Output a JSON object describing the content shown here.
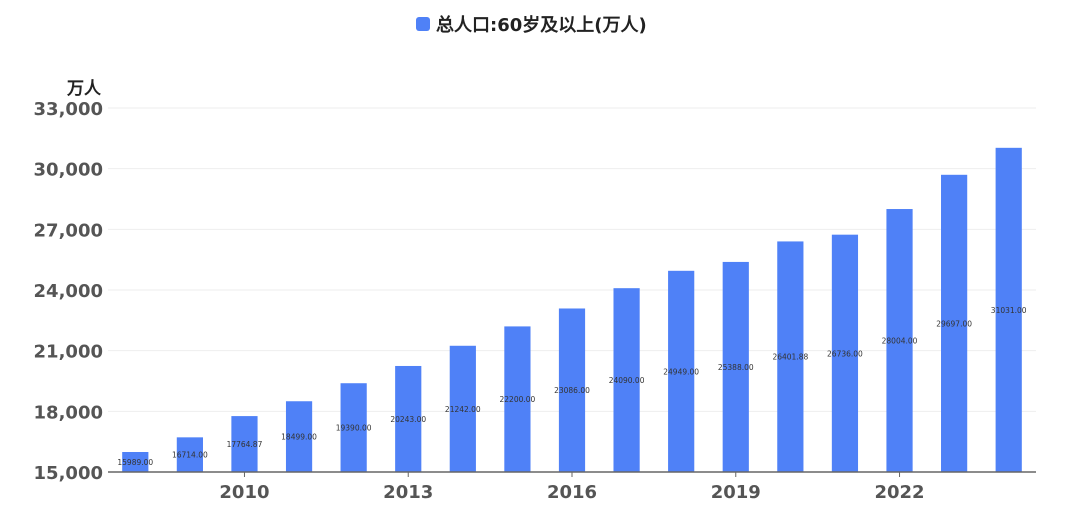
{
  "chart_data": {
    "type": "bar",
    "title": "",
    "legend": {
      "entries": [
        "总人口:60岁及以上(万人)"
      ],
      "placement": "top-center"
    },
    "ylabel": "万人",
    "xlabel": "",
    "ylim": [
      15000,
      33000
    ],
    "yticks": [
      "15,000",
      "18,000",
      "21,000",
      "24,000",
      "27,000",
      "30,000",
      "33,000"
    ],
    "ytick_values": [
      15000,
      18000,
      21000,
      24000,
      27000,
      30000,
      33000
    ],
    "x": [
      2008,
      2009,
      2010,
      2011,
      2012,
      2013,
      2014,
      2015,
      2016,
      2017,
      2018,
      2019,
      2020,
      2021,
      2022,
      2023,
      2024
    ],
    "xticks": [
      "2010",
      "2013",
      "2016",
      "2019",
      "2022"
    ],
    "xtick_values": [
      2010,
      2013,
      2016,
      2019,
      2022
    ],
    "series": [
      {
        "name": "总人口:60岁及以上(万人)",
        "color": "#4f81f7",
        "values": [
          15989,
          16714,
          17764.87,
          18499,
          19390,
          20243,
          21242,
          22200,
          23086,
          24090,
          24949,
          25388,
          26401.88,
          26736,
          28004,
          29697,
          31031
        ],
        "labels": [
          "15989.00",
          "16714.00",
          "17764.87",
          "18499.00",
          "19390.00",
          "20243.00",
          "21242.00",
          "22200.00",
          "23086.00",
          "24090.00",
          "24949.00",
          "25388.00",
          "26401.88",
          "26736.00",
          "28004.00",
          "29697.00",
          "31031.00"
        ]
      }
    ],
    "grid": true
  }
}
